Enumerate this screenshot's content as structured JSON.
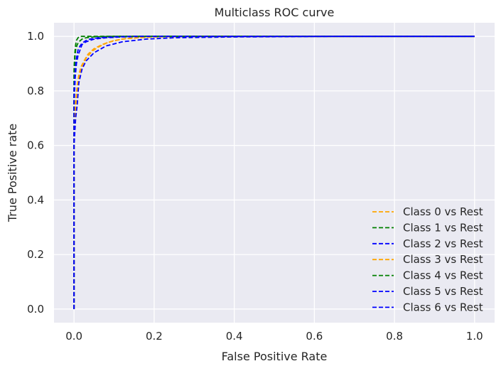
{
  "chart_data": {
    "type": "line",
    "title": "Multiclass ROC curve",
    "xlabel": "False Positive Rate",
    "ylabel": "True Positive rate",
    "xlim": [
      -0.05,
      1.05
    ],
    "ylim": [
      -0.05,
      1.05
    ],
    "xticks": [
      0.0,
      0.2,
      0.4,
      0.6,
      0.8,
      1.0
    ],
    "yticks": [
      0.0,
      0.2,
      0.4,
      0.6,
      0.8,
      1.0
    ],
    "xtick_labels": [
      "0.0",
      "0.2",
      "0.4",
      "0.6",
      "0.8",
      "1.0"
    ],
    "ytick_labels": [
      "0.0",
      "0.2",
      "0.4",
      "0.6",
      "0.8",
      "1.0"
    ],
    "grid": true,
    "legend_position": "bottom-right",
    "line_style": "dashed",
    "series": [
      {
        "name": "Class 0 vs Rest",
        "color": "#ffa500",
        "x": [
          0,
          0,
          0.003,
          0.006,
          0.01,
          0.015,
          0.02,
          0.03,
          0.045,
          0.06,
          0.08,
          0.1,
          0.13,
          0.17,
          0.2,
          0.25,
          0.3,
          1.0
        ],
        "y": [
          0,
          0.62,
          0.72,
          0.78,
          0.83,
          0.86,
          0.89,
          0.92,
          0.945,
          0.96,
          0.975,
          0.985,
          0.992,
          0.996,
          0.998,
          1.0,
          1.0,
          1.0
        ]
      },
      {
        "name": "Class 1 vs Rest",
        "color": "#008000",
        "x": [
          0,
          0,
          0.002,
          0.004,
          0.006,
          0.01,
          0.015,
          0.02,
          0.1,
          0.5,
          1.0
        ],
        "y": [
          0,
          0.88,
          0.94,
          0.97,
          0.985,
          0.995,
          1.0,
          1.0,
          1.0,
          1.0,
          1.0
        ]
      },
      {
        "name": "Class 2 vs Rest",
        "color": "#0000ff",
        "x": [
          0,
          0,
          0.003,
          0.006,
          0.01,
          0.015,
          0.02,
          0.03,
          0.05,
          0.08,
          0.12,
          0.2,
          1.0
        ],
        "y": [
          0,
          0.75,
          0.85,
          0.9,
          0.93,
          0.95,
          0.97,
          0.98,
          0.99,
          0.995,
          0.998,
          1.0,
          1.0
        ]
      },
      {
        "name": "Class 3 vs Rest",
        "color": "#ffa500",
        "x": [
          0,
          0,
          0.004,
          0.008,
          0.012,
          0.018,
          0.025,
          0.035,
          0.05,
          0.07,
          0.09,
          0.12,
          0.16,
          0.2,
          0.3,
          1.0
        ],
        "y": [
          0,
          0.68,
          0.76,
          0.82,
          0.86,
          0.89,
          0.91,
          0.935,
          0.955,
          0.97,
          0.98,
          0.99,
          0.995,
          0.998,
          1.0,
          1.0
        ]
      },
      {
        "name": "Class 4 vs Rest",
        "color": "#008000",
        "x": [
          0,
          0,
          0.002,
          0.004,
          0.008,
          0.012,
          0.02,
          0.03,
          0.05,
          0.1,
          0.3,
          1.0
        ],
        "y": [
          0,
          0.85,
          0.92,
          0.95,
          0.97,
          0.98,
          0.99,
          0.995,
          0.998,
          1.0,
          1.0,
          1.0
        ]
      },
      {
        "name": "Class 5 vs Rest",
        "color": "#0000ff",
        "x": [
          0,
          0,
          0.004,
          0.008,
          0.012,
          0.02,
          0.03,
          0.05,
          0.08,
          0.12,
          0.18,
          0.25,
          0.4,
          0.67,
          1.0
        ],
        "y": [
          0,
          0.6,
          0.7,
          0.75,
          0.83,
          0.88,
          0.91,
          0.94,
          0.965,
          0.98,
          0.99,
          0.995,
          0.998,
          1.0,
          1.0
        ]
      },
      {
        "name": "Class 6 vs Rest",
        "color": "#0000ff",
        "x": [
          0,
          0,
          0.003,
          0.006,
          0.01,
          0.015,
          0.02,
          0.03,
          0.04,
          0.06,
          0.1,
          0.15,
          0.25,
          1.0
        ],
        "y": [
          0,
          0.8,
          0.88,
          0.92,
          0.95,
          0.965,
          0.975,
          0.985,
          0.99,
          0.995,
          0.998,
          1.0,
          1.0,
          1.0
        ]
      }
    ]
  }
}
